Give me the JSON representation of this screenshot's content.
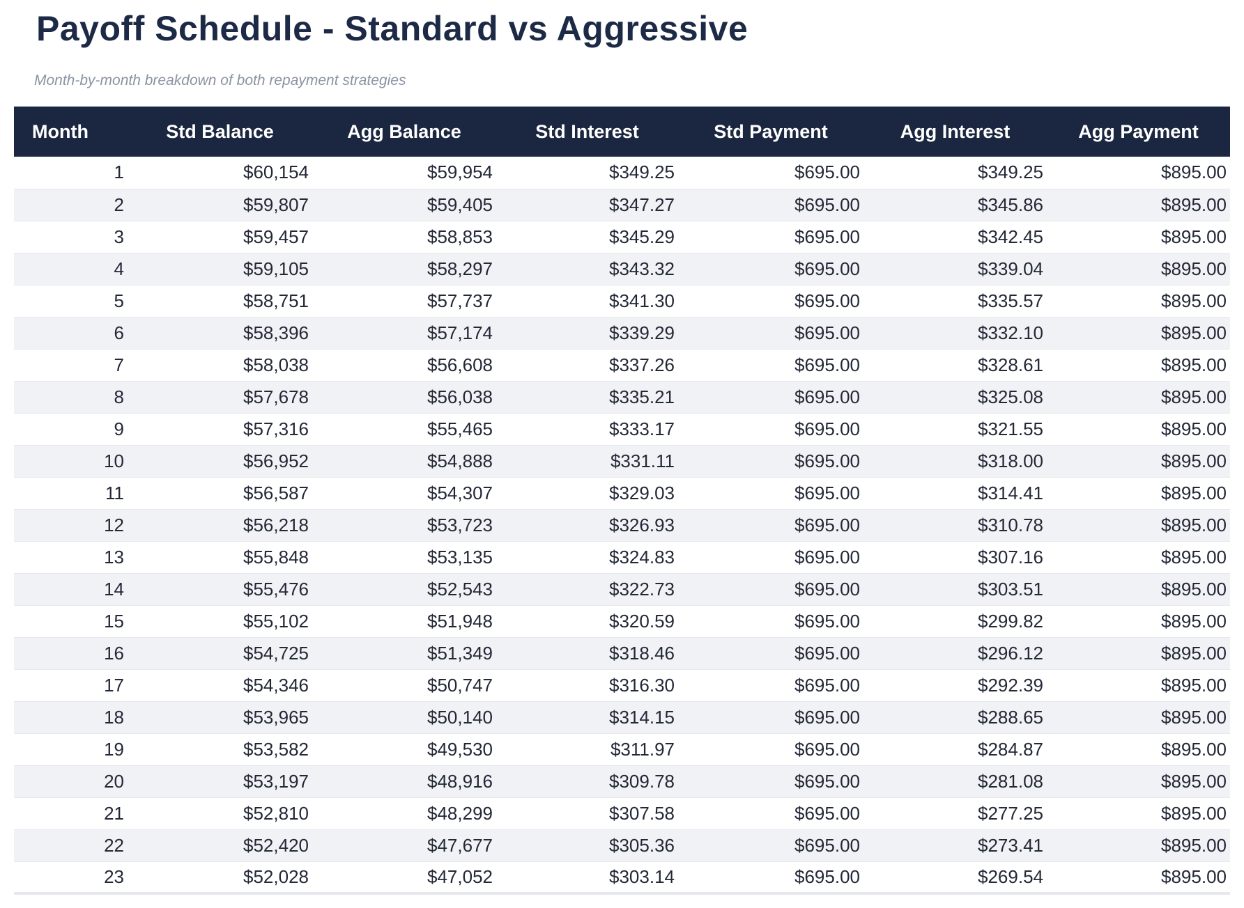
{
  "colors": {
    "header_bg": "#1b2740",
    "header_text": "#ffffff",
    "title_text": "#1d2a46",
    "subtitle_text": "#8b92a2",
    "body_text": "#232837",
    "stripe": "#f1f2f5",
    "border": "#e7e8ee",
    "page_bg": "#ffffff"
  },
  "chart_data": {
    "type": "table",
    "title": "Payoff Schedule - Standard vs Aggressive",
    "subtitle": "Month-by-month breakdown of both repayment strategies",
    "columns": [
      "Month",
      "Std Balance",
      "Agg Balance",
      "Std Interest",
      "Std Payment",
      "Agg Interest",
      "Agg Payment"
    ],
    "column_keys": [
      "month",
      "std-balance",
      "agg-balance",
      "std-interest",
      "std-payment",
      "agg-interest",
      "agg-payment"
    ],
    "rows": [
      [
        "1",
        "$60,154",
        "$59,954",
        "$349.25",
        "$695.00",
        "$349.25",
        "$895.00"
      ],
      [
        "2",
        "$59,807",
        "$59,405",
        "$347.27",
        "$695.00",
        "$345.86",
        "$895.00"
      ],
      [
        "3",
        "$59,457",
        "$58,853",
        "$345.29",
        "$695.00",
        "$342.45",
        "$895.00"
      ],
      [
        "4",
        "$59,105",
        "$58,297",
        "$343.32",
        "$695.00",
        "$339.04",
        "$895.00"
      ],
      [
        "5",
        "$58,751",
        "$57,737",
        "$341.30",
        "$695.00",
        "$335.57",
        "$895.00"
      ],
      [
        "6",
        "$58,396",
        "$57,174",
        "$339.29",
        "$695.00",
        "$332.10",
        "$895.00"
      ],
      [
        "7",
        "$58,038",
        "$56,608",
        "$337.26",
        "$695.00",
        "$328.61",
        "$895.00"
      ],
      [
        "8",
        "$57,678",
        "$56,038",
        "$335.21",
        "$695.00",
        "$325.08",
        "$895.00"
      ],
      [
        "9",
        "$57,316",
        "$55,465",
        "$333.17",
        "$695.00",
        "$321.55",
        "$895.00"
      ],
      [
        "10",
        "$56,952",
        "$54,888",
        "$331.11",
        "$695.00",
        "$318.00",
        "$895.00"
      ],
      [
        "11",
        "$56,587",
        "$54,307",
        "$329.03",
        "$695.00",
        "$314.41",
        "$895.00"
      ],
      [
        "12",
        "$56,218",
        "$53,723",
        "$326.93",
        "$695.00",
        "$310.78",
        "$895.00"
      ],
      [
        "13",
        "$55,848",
        "$53,135",
        "$324.83",
        "$695.00",
        "$307.16",
        "$895.00"
      ],
      [
        "14",
        "$55,476",
        "$52,543",
        "$322.73",
        "$695.00",
        "$303.51",
        "$895.00"
      ],
      [
        "15",
        "$55,102",
        "$51,948",
        "$320.59",
        "$695.00",
        "$299.82",
        "$895.00"
      ],
      [
        "16",
        "$54,725",
        "$51,349",
        "$318.46",
        "$695.00",
        "$296.12",
        "$895.00"
      ],
      [
        "17",
        "$54,346",
        "$50,747",
        "$316.30",
        "$695.00",
        "$292.39",
        "$895.00"
      ],
      [
        "18",
        "$53,965",
        "$50,140",
        "$314.15",
        "$695.00",
        "$288.65",
        "$895.00"
      ],
      [
        "19",
        "$53,582",
        "$49,530",
        "$311.97",
        "$695.00",
        "$284.87",
        "$895.00"
      ],
      [
        "20",
        "$53,197",
        "$48,916",
        "$309.78",
        "$695.00",
        "$281.08",
        "$895.00"
      ],
      [
        "21",
        "$52,810",
        "$48,299",
        "$307.58",
        "$695.00",
        "$277.25",
        "$895.00"
      ],
      [
        "22",
        "$52,420",
        "$47,677",
        "$305.36",
        "$695.00",
        "$273.41",
        "$895.00"
      ],
      [
        "23",
        "$52,028",
        "$47,052",
        "$303.14",
        "$695.00",
        "$269.54",
        "$895.00"
      ]
    ]
  }
}
